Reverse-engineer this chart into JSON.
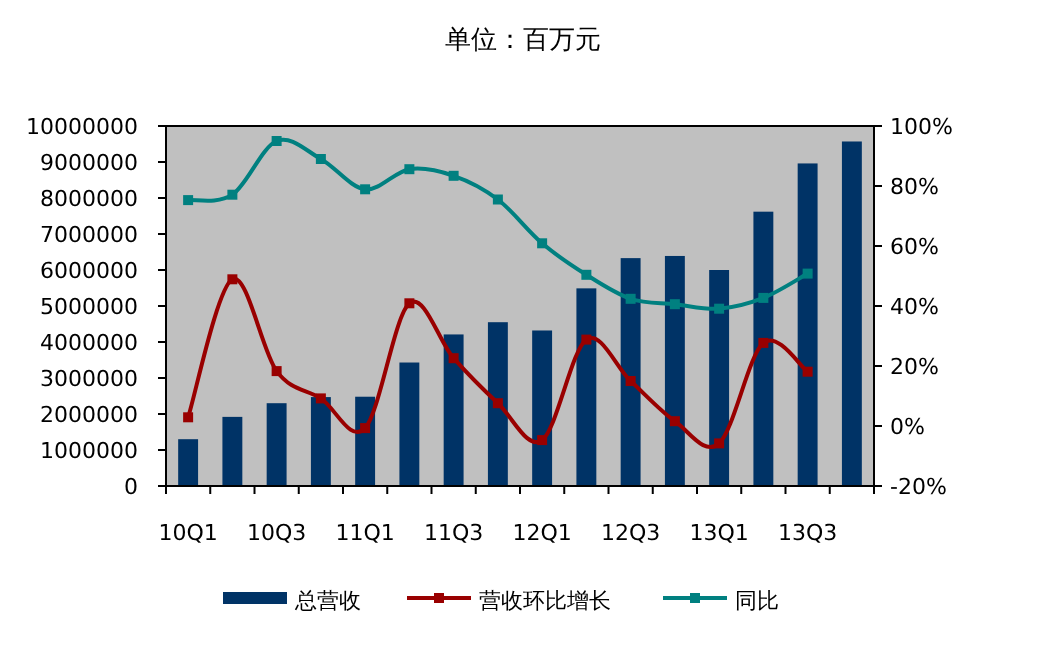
{
  "chart_data": {
    "type": "bar",
    "title": "单位：百万元",
    "categories": [
      "10Q1",
      null,
      "10Q3",
      null,
      "11Q1",
      null,
      "11Q3",
      null,
      "12Q1",
      null,
      "12Q3",
      null,
      "13Q1",
      null,
      "13Q3",
      null
    ],
    "series": [
      {
        "name": "总营收",
        "color": "#003366",
        "values": [
          1300000,
          1920000,
          2300000,
          2470000,
          2480000,
          3430000,
          4210000,
          4550000,
          4320000,
          5490000,
          6330000,
          6390000,
          6000000,
          7620000,
          8960000,
          9570000
        ]
      },
      {
        "name": "营收环比增长",
        "type": "line",
        "axis": "y2",
        "color": "#990000",
        "marker": "square",
        "values": [
          2.9,
          48.9,
          18.3,
          9.2,
          -0.7,
          40.9,
          22.6,
          7.6,
          -4.7,
          28.8,
          15.0,
          1.6,
          -5.8,
          27.7,
          18.1,
          null
        ]
      },
      {
        "name": "同比",
        "type": "line",
        "axis": "y2",
        "color": "#008080",
        "marker": "square",
        "values": [
          75.3,
          77.1,
          95,
          89,
          78.9,
          85.6,
          83.4,
          75.5,
          60.9,
          50.4,
          42.4,
          40.6,
          39.1,
          42.7,
          50.8,
          null
        ]
      }
    ],
    "ylim": [
      0,
      10000000
    ],
    "yticks": [
      0,
      1000000,
      2000000,
      3000000,
      4000000,
      5000000,
      6000000,
      7000000,
      8000000,
      9000000,
      10000000
    ],
    "y2lim": [
      -20,
      100
    ],
    "y2ticks": [
      {
        "value": -20,
        "label": "-20%"
      },
      {
        "value": 0,
        "label": "0%"
      },
      {
        "value": 20,
        "label": "20%"
      },
      {
        "value": 40,
        "label": "40%"
      },
      {
        "value": 60,
        "label": "60%"
      },
      {
        "value": 80,
        "label": "80%"
      },
      {
        "value": 100,
        "label": "100%"
      }
    ],
    "grid": false,
    "legend": "bottom"
  }
}
